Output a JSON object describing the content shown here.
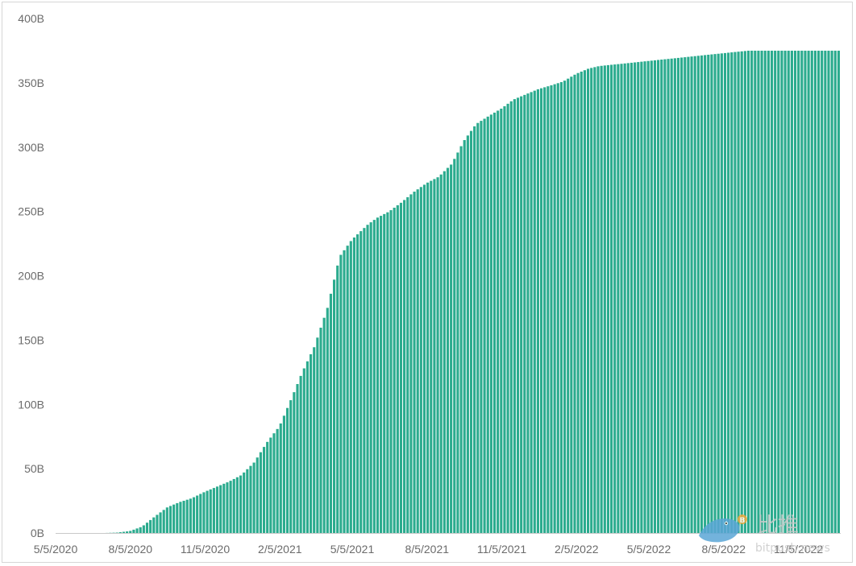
{
  "chart_data": {
    "type": "bar",
    "title": "",
    "xlabel": "",
    "ylabel": "",
    "unit_suffix": "B",
    "ylim": [
      0,
      400
    ],
    "grid": false,
    "bar_color": "#2bab8e",
    "x_ticks": [
      "5/5/2020",
      "8/5/2020",
      "11/5/2020",
      "2/5/2021",
      "5/5/2021",
      "8/5/2021",
      "11/5/2021",
      "2/5/2022",
      "5/5/2022",
      "8/5/2022",
      "11/5/2022"
    ],
    "y_ticks": [
      "0B",
      "50B",
      "100B",
      "150B",
      "200B",
      "250B",
      "300B",
      "350B",
      "400B"
    ],
    "x": [
      "2020-05-05",
      "2020-06-05",
      "2020-07-05",
      "2020-07-20",
      "2020-08-05",
      "2020-08-20",
      "2020-09-05",
      "2020-09-20",
      "2020-10-05",
      "2020-10-20",
      "2020-11-05",
      "2020-11-20",
      "2020-12-05",
      "2020-12-20",
      "2021-01-05",
      "2021-01-20",
      "2021-02-05",
      "2021-02-20",
      "2021-03-05",
      "2021-03-20",
      "2021-04-05",
      "2021-04-20",
      "2021-05-05",
      "2021-05-15",
      "2021-05-25",
      "2021-06-05",
      "2021-06-20",
      "2021-07-05",
      "2021-07-20",
      "2021-08-05",
      "2021-08-20",
      "2021-09-05",
      "2021-09-20",
      "2021-10-05",
      "2021-10-20",
      "2021-11-05",
      "2021-11-20",
      "2021-12-05",
      "2021-12-20",
      "2022-01-05",
      "2022-01-20",
      "2022-02-05",
      "2022-02-20",
      "2022-03-05",
      "2022-03-20",
      "2022-04-05",
      "2022-04-20",
      "2022-05-05",
      "2022-05-20",
      "2022-06-05",
      "2022-06-20",
      "2022-07-05",
      "2022-07-20",
      "2022-08-05",
      "2022-08-20",
      "2022-09-05",
      "2022-09-20",
      "2022-10-05",
      "2022-10-20",
      "2022-11-05",
      "2022-11-20",
      "2022-12-05",
      "2022-12-20",
      "2022-12-27"
    ],
    "values": [
      0,
      0,
      0,
      0.3,
      1.5,
      5,
      13,
      20,
      24,
      27,
      32,
      36,
      40,
      45,
      55,
      70,
      83,
      105,
      125,
      145,
      175,
      215,
      228,
      234,
      240,
      245,
      250,
      257,
      265,
      272,
      277,
      287,
      305,
      318,
      324,
      330,
      337,
      341,
      345,
      348,
      351,
      357,
      361,
      363,
      364,
      365,
      366,
      367,
      368,
      369,
      370,
      371,
      372,
      373,
      374,
      375,
      375,
      375,
      375,
      375,
      375,
      375,
      375,
      375
    ]
  },
  "watermark": {
    "text_cn": "比推",
    "text_en": "bitpush.news",
    "coin_symbol": "B"
  }
}
